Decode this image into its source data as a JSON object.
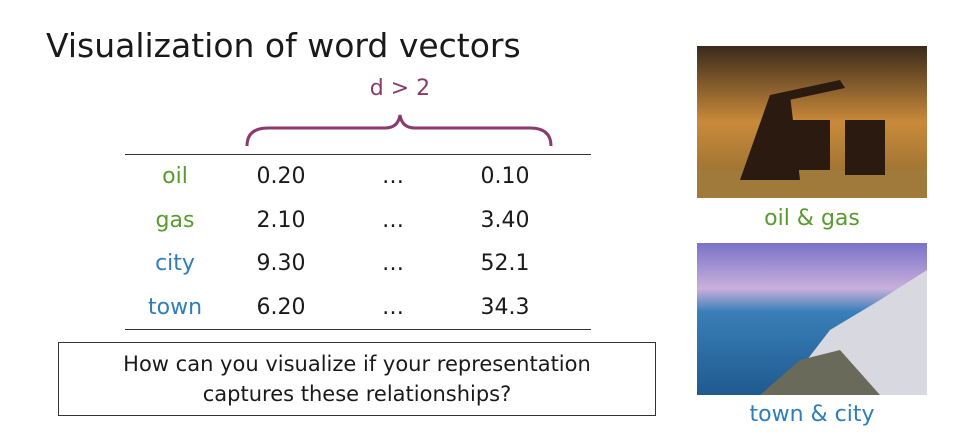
{
  "header": {
    "title": "Visualization of word vectors"
  },
  "brace_label": "d > 2",
  "table": {
    "rows": [
      [
        "oil",
        "0.20",
        "…",
        "0.10"
      ],
      [
        "gas",
        "2.10",
        "…",
        "3.40"
      ],
      [
        "city",
        "9.30",
        "…",
        "52.1"
      ],
      [
        "town",
        "6.20",
        "…",
        "34.3"
      ]
    ]
  },
  "question": "How can you visualize if your representation captures these relationships?",
  "images": [
    {
      "caption": "oil & gas"
    },
    {
      "caption": "town & city"
    }
  ]
}
